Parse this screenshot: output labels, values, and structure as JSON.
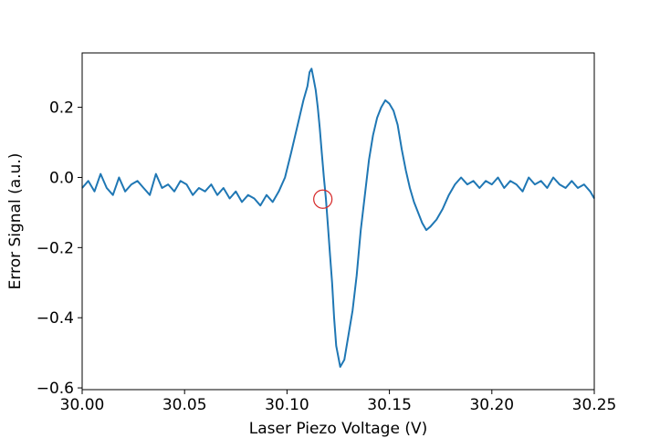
{
  "chart_data": {
    "type": "line",
    "xlabel": "Laser Piezo Voltage (V)",
    "ylabel": "Error Signal (a.u.)",
    "xlim": [
      30.0,
      30.25
    ],
    "ylim": [
      -0.605,
      0.355
    ],
    "grid": false,
    "x_ticks": [
      {
        "value": 30.0,
        "label": "30.00"
      },
      {
        "value": 30.05,
        "label": "30.05"
      },
      {
        "value": 30.1,
        "label": "30.10"
      },
      {
        "value": 30.15,
        "label": "30.15"
      },
      {
        "value": 30.2,
        "label": "30.20"
      },
      {
        "value": 30.25,
        "label": "30.25"
      }
    ],
    "y_ticks": [
      {
        "value": 0.2,
        "label": "0.2"
      },
      {
        "value": 0.0,
        "label": "0.0"
      },
      {
        "value": -0.2,
        "label": "−0.2"
      },
      {
        "value": -0.4,
        "label": "−0.4"
      },
      {
        "value": -0.6,
        "label": "−0.6"
      }
    ],
    "series": [
      {
        "color": "#1f77b4",
        "x": [
          30.0,
          30.003,
          30.006,
          30.009,
          30.012,
          30.015,
          30.018,
          30.021,
          30.024,
          30.027,
          30.03,
          30.033,
          30.036,
          30.039,
          30.042,
          30.045,
          30.048,
          30.051,
          30.054,
          30.057,
          30.06,
          30.063,
          30.066,
          30.069,
          30.072,
          30.075,
          30.078,
          30.081,
          30.084,
          30.087,
          30.09,
          30.093,
          30.096,
          30.099,
          30.102,
          30.104,
          30.106,
          30.108,
          30.11,
          30.111,
          30.112,
          30.113,
          30.114,
          30.115,
          30.116,
          30.117,
          30.118,
          30.119,
          30.12,
          30.121,
          30.122,
          30.123,
          30.124,
          30.126,
          30.128,
          30.13,
          30.132,
          30.134,
          30.136,
          30.138,
          30.14,
          30.142,
          30.144,
          30.146,
          30.148,
          30.15,
          30.152,
          30.154,
          30.156,
          30.158,
          30.16,
          30.162,
          30.164,
          30.166,
          30.168,
          30.17,
          30.173,
          30.176,
          30.179,
          30.182,
          30.185,
          30.188,
          30.191,
          30.194,
          30.197,
          30.2,
          30.203,
          30.206,
          30.209,
          30.212,
          30.215,
          30.218,
          30.221,
          30.224,
          30.227,
          30.23,
          30.233,
          30.236,
          30.239,
          30.242,
          30.245,
          30.248,
          30.25
        ],
        "y": [
          -0.03,
          -0.01,
          -0.04,
          0.01,
          -0.03,
          -0.05,
          0.0,
          -0.04,
          -0.02,
          -0.01,
          -0.03,
          -0.05,
          0.01,
          -0.03,
          -0.02,
          -0.04,
          -0.01,
          -0.02,
          -0.05,
          -0.03,
          -0.04,
          -0.02,
          -0.05,
          -0.03,
          -0.06,
          -0.04,
          -0.07,
          -0.05,
          -0.06,
          -0.08,
          -0.05,
          -0.07,
          -0.04,
          0.0,
          0.07,
          0.12,
          0.17,
          0.22,
          0.26,
          0.3,
          0.31,
          0.28,
          0.25,
          0.2,
          0.14,
          0.07,
          0.0,
          -0.06,
          -0.14,
          -0.22,
          -0.3,
          -0.4,
          -0.48,
          -0.54,
          -0.52,
          -0.45,
          -0.38,
          -0.28,
          -0.15,
          -0.05,
          0.05,
          0.12,
          0.17,
          0.2,
          0.22,
          0.21,
          0.19,
          0.15,
          0.08,
          0.02,
          -0.03,
          -0.07,
          -0.1,
          -0.13,
          -0.15,
          -0.14,
          -0.12,
          -0.09,
          -0.05,
          -0.02,
          0.0,
          -0.02,
          -0.01,
          -0.03,
          -0.01,
          -0.02,
          0.0,
          -0.03,
          -0.01,
          -0.02,
          -0.04,
          0.0,
          -0.02,
          -0.01,
          -0.03,
          0.0,
          -0.02,
          -0.03,
          -0.01,
          -0.03,
          -0.02,
          -0.04,
          -0.06
        ]
      }
    ],
    "annotations": [
      {
        "type": "circle",
        "x": 30.1175,
        "y": -0.062,
        "color": "#d62728"
      }
    ]
  }
}
